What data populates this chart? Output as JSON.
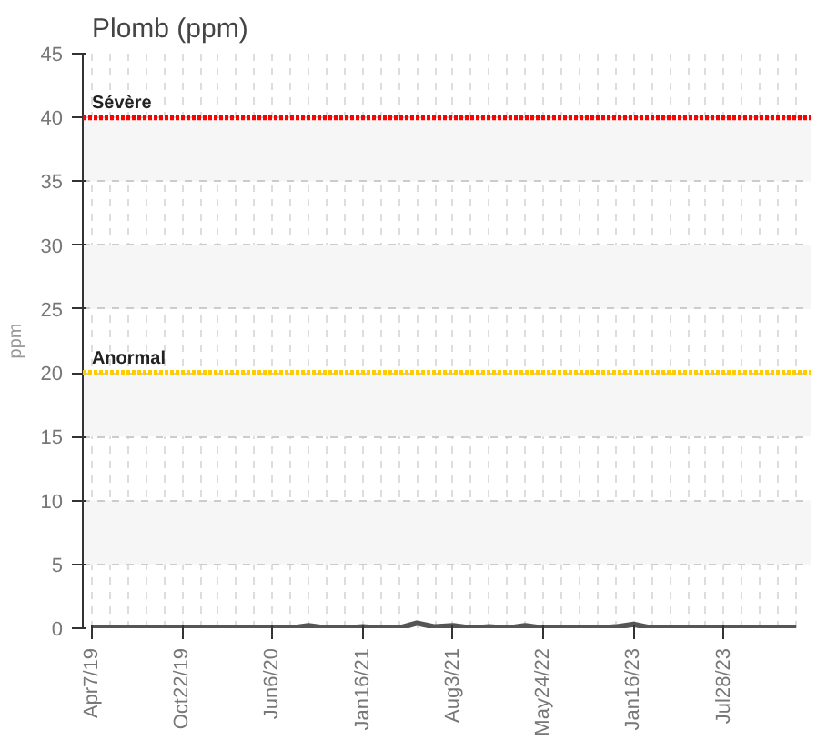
{
  "chart_data": {
    "type": "line",
    "title": "Plomb (ppm)",
    "ylabel": "ppm",
    "categories": [
      "Apr7/19",
      null,
      null,
      null,
      null,
      "Oct22/19",
      null,
      null,
      null,
      null,
      "Jun6/20",
      null,
      null,
      null,
      null,
      "Jan16/21",
      null,
      null,
      null,
      null,
      "Aug3/21",
      null,
      null,
      null,
      null,
      "May24/22",
      null,
      null,
      null,
      null,
      "Jan16/23",
      null,
      null,
      null,
      null,
      "Jul28/23",
      null,
      null,
      null,
      null
    ],
    "series": [
      {
        "color": "#555555",
        "values": [
          0,
          0,
          0,
          0,
          0,
          0,
          0,
          0,
          0,
          0,
          0,
          0,
          0.2,
          0,
          0,
          0.1,
          0,
          0,
          0.4,
          0.1,
          0.2,
          0,
          0.1,
          0,
          0.2,
          0,
          0,
          0,
          0,
          0.1,
          0.3,
          0,
          0,
          0,
          0,
          0,
          0,
          0,
          0,
          0
        ]
      }
    ],
    "ylim": [
      0,
      45
    ],
    "yticks": [
      0,
      5,
      10,
      15,
      20,
      25,
      30,
      35,
      40,
      45
    ],
    "grid": true,
    "marker": "none",
    "line_style": "solid",
    "ref_lines": [
      {
        "axis": "y",
        "value": 40,
        "label": "Sévère",
        "color": "#ff0000",
        "line_style": "dotted"
      },
      {
        "axis": "y",
        "value": 20,
        "label": "Anormal",
        "color": "#ffcc00",
        "line_style": "dotted"
      }
    ]
  }
}
